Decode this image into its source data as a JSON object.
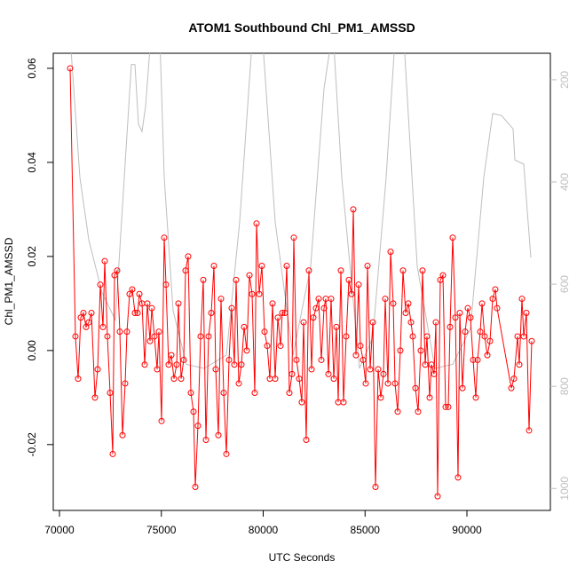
{
  "chart_data": {
    "type": "line",
    "title": "ATOM1 Southbound Chl_PM1_AMSSD",
    "x_label": "UTC Seconds",
    "y_label": "Chl_PM1_AMSSD",
    "x": [
      70523,
      70784,
      70915,
      71046,
      71176,
      71307,
      71438,
      71569,
      71743,
      71874,
      72004,
      72135,
      72222,
      72353,
      72484,
      72614,
      72702,
      72832,
      72963,
      73094,
      73224,
      73312,
      73442,
      73573,
      73704,
      73834,
      73922,
      74052,
      74183,
      74314,
      74444,
      74532,
      74662,
      74793,
      74880,
      75011,
      75142,
      75229,
      75359,
      75490,
      75621,
      75752,
      75839,
      75970,
      76100,
      76187,
      76318,
      76449,
      76580,
      76667,
      76797,
      76928,
      77059,
      77190,
      77320,
      77451,
      77582,
      77669,
      77800,
      77930,
      78061,
      78192,
      78322,
      78453,
      78584,
      78671,
      78802,
      78932,
      79063,
      79194,
      79325,
      79455,
      79586,
      79673,
      79804,
      79935,
      80065,
      80196,
      80327,
      80458,
      80588,
      80719,
      80850,
      80937,
      81068,
      81155,
      81285,
      81416,
      81503,
      81634,
      81765,
      81895,
      81983,
      82113,
      82244,
      82375,
      82462,
      82593,
      82723,
      82854,
      82985,
      83072,
      83203,
      83333,
      83464,
      83595,
      83682,
      83813,
      83943,
      84074,
      84205,
      84336,
      84423,
      84553,
      84684,
      84771,
      84902,
      85033,
      85120,
      85251,
      85381,
      85512,
      85643,
      85773,
      85904,
      85991,
      86122,
      86253,
      86383,
      86471,
      86601,
      86732,
      86863,
      86993,
      87124,
      87255,
      87342,
      87473,
      87603,
      87734,
      87821,
      87952,
      88039,
      88170,
      88257,
      88388,
      88475,
      88562,
      88693,
      88824,
      88954,
      89085,
      89172,
      89303,
      89434,
      89564,
      89651,
      89782,
      89913,
      90044,
      90174,
      90305,
      90436,
      90523,
      90654,
      90741,
      90871,
      91002,
      91133,
      91264,
      91394,
      91481,
      92179,
      92309,
      92484,
      92571,
      92702,
      92789,
      92919,
      93050,
      93181
    ],
    "series": [
      {
        "color": "#ff0000",
        "markers": true,
        "values": [
          0.06,
          0.003,
          -0.006,
          0.007,
          0.008,
          0.005,
          0.006,
          0.008,
          -0.01,
          -0.004,
          0.014,
          0.005,
          0.019,
          0.003,
          -0.009,
          -0.022,
          0.016,
          0.017,
          0.004,
          -0.018,
          -0.007,
          0.004,
          0.012,
          0.013,
          0.008,
          0.008,
          0.012,
          0.01,
          -0.003,
          0.01,
          0.002,
          0.009,
          0.003,
          -0.004,
          0.004,
          -0.015,
          0.024,
          0.014,
          -0.003,
          -0.001,
          -0.006,
          -0.003,
          0.01,
          -0.006,
          -0.002,
          0.017,
          0.02,
          -0.009,
          -0.013,
          -0.029,
          -0.016,
          0.003,
          0.015,
          -0.019,
          0.003,
          0.008,
          0.018,
          -0.004,
          -0.018,
          0.011,
          -0.009,
          -0.022,
          -0.002,
          0.009,
          -0.003,
          0.015,
          -0.007,
          -0.003,
          0.005,
          0.0,
          0.016,
          0.012,
          -0.009,
          0.027,
          0.012,
          0.018,
          0.004,
          0.001,
          -0.006,
          0.01,
          -0.006,
          0.007,
          0.001,
          0.008,
          0.008,
          0.018,
          -0.009,
          -0.005,
          0.024,
          -0.002,
          -0.006,
          -0.011,
          0.006,
          -0.019,
          0.017,
          -0.004,
          0.007,
          0.009,
          0.011,
          -0.002,
          0.009,
          0.011,
          -0.005,
          0.011,
          -0.006,
          0.005,
          -0.011,
          0.017,
          -0.011,
          0.003,
          0.015,
          0.012,
          0.03,
          -0.001,
          0.014,
          0.001,
          -0.002,
          -0.007,
          0.018,
          -0.004,
          0.006,
          -0.029,
          -0.004,
          -0.01,
          -0.005,
          0.011,
          -0.007,
          0.021,
          0.01,
          -0.007,
          -0.013,
          0.0,
          0.017,
          0.008,
          0.01,
          0.006,
          0.003,
          -0.008,
          -0.013,
          0.0,
          0.017,
          -0.003,
          0.003,
          -0.01,
          -0.003,
          -0.005,
          0.006,
          -0.031,
          0.015,
          0.016,
          -0.012,
          -0.012,
          0.005,
          0.024,
          0.007,
          -0.027,
          0.008,
          -0.008,
          0.004,
          0.009,
          0.007,
          -0.002,
          -0.01,
          -0.002,
          0.004,
          0.01,
          0.003,
          -0.001,
          0.002,
          0.011,
          0.013,
          0.009,
          -0.008,
          -0.006,
          0.003,
          -0.003,
          0.011,
          0.003,
          0.008,
          -0.017,
          0.002
        ]
      },
      {
        "color": "#bebebe",
        "axis": "y2",
        "markers": false,
        "x": [
          70566,
          71002,
          71438,
          72091,
          72745,
          73181,
          73529,
          73704,
          73878,
          74052,
          74227,
          74488,
          74924,
          75142,
          75577,
          76231,
          77102,
          78192,
          78845,
          79499,
          79935,
          80588,
          81460,
          82331,
          82985,
          83420,
          83856,
          84728,
          85381,
          86035,
          86471,
          86906,
          87560,
          88431,
          89303,
          90174,
          90828,
          91264,
          91699,
          92266,
          92353,
          92789,
          93137
        ],
        "values": [
          140,
          391,
          513,
          617,
          670,
          391,
          170,
          170,
          287,
          301,
          252,
          113,
          113,
          391,
          652,
          757,
          765,
          739,
          478,
          100,
          100,
          478,
          739,
          565,
          217,
          100,
          391,
          765,
          704,
          391,
          120,
          120,
          565,
          765,
          757,
          687,
          391,
          266,
          270,
          296,
          357,
          365,
          548
        ]
      }
    ],
    "xlim": [
      69695,
      94096
    ],
    "xticks": [
      70000,
      75000,
      80000,
      85000,
      90000
    ],
    "ylim": [
      -0.034,
      0.0632
    ],
    "yticks": [
      -0.02,
      {
        "value": 0,
        "label": "0.00"
      },
      0.02,
      0.04,
      0.06
    ],
    "y2lim": [
      1043,
      148
    ],
    "y2ticks": [
      200,
      400,
      600,
      800,
      1000
    ]
  }
}
